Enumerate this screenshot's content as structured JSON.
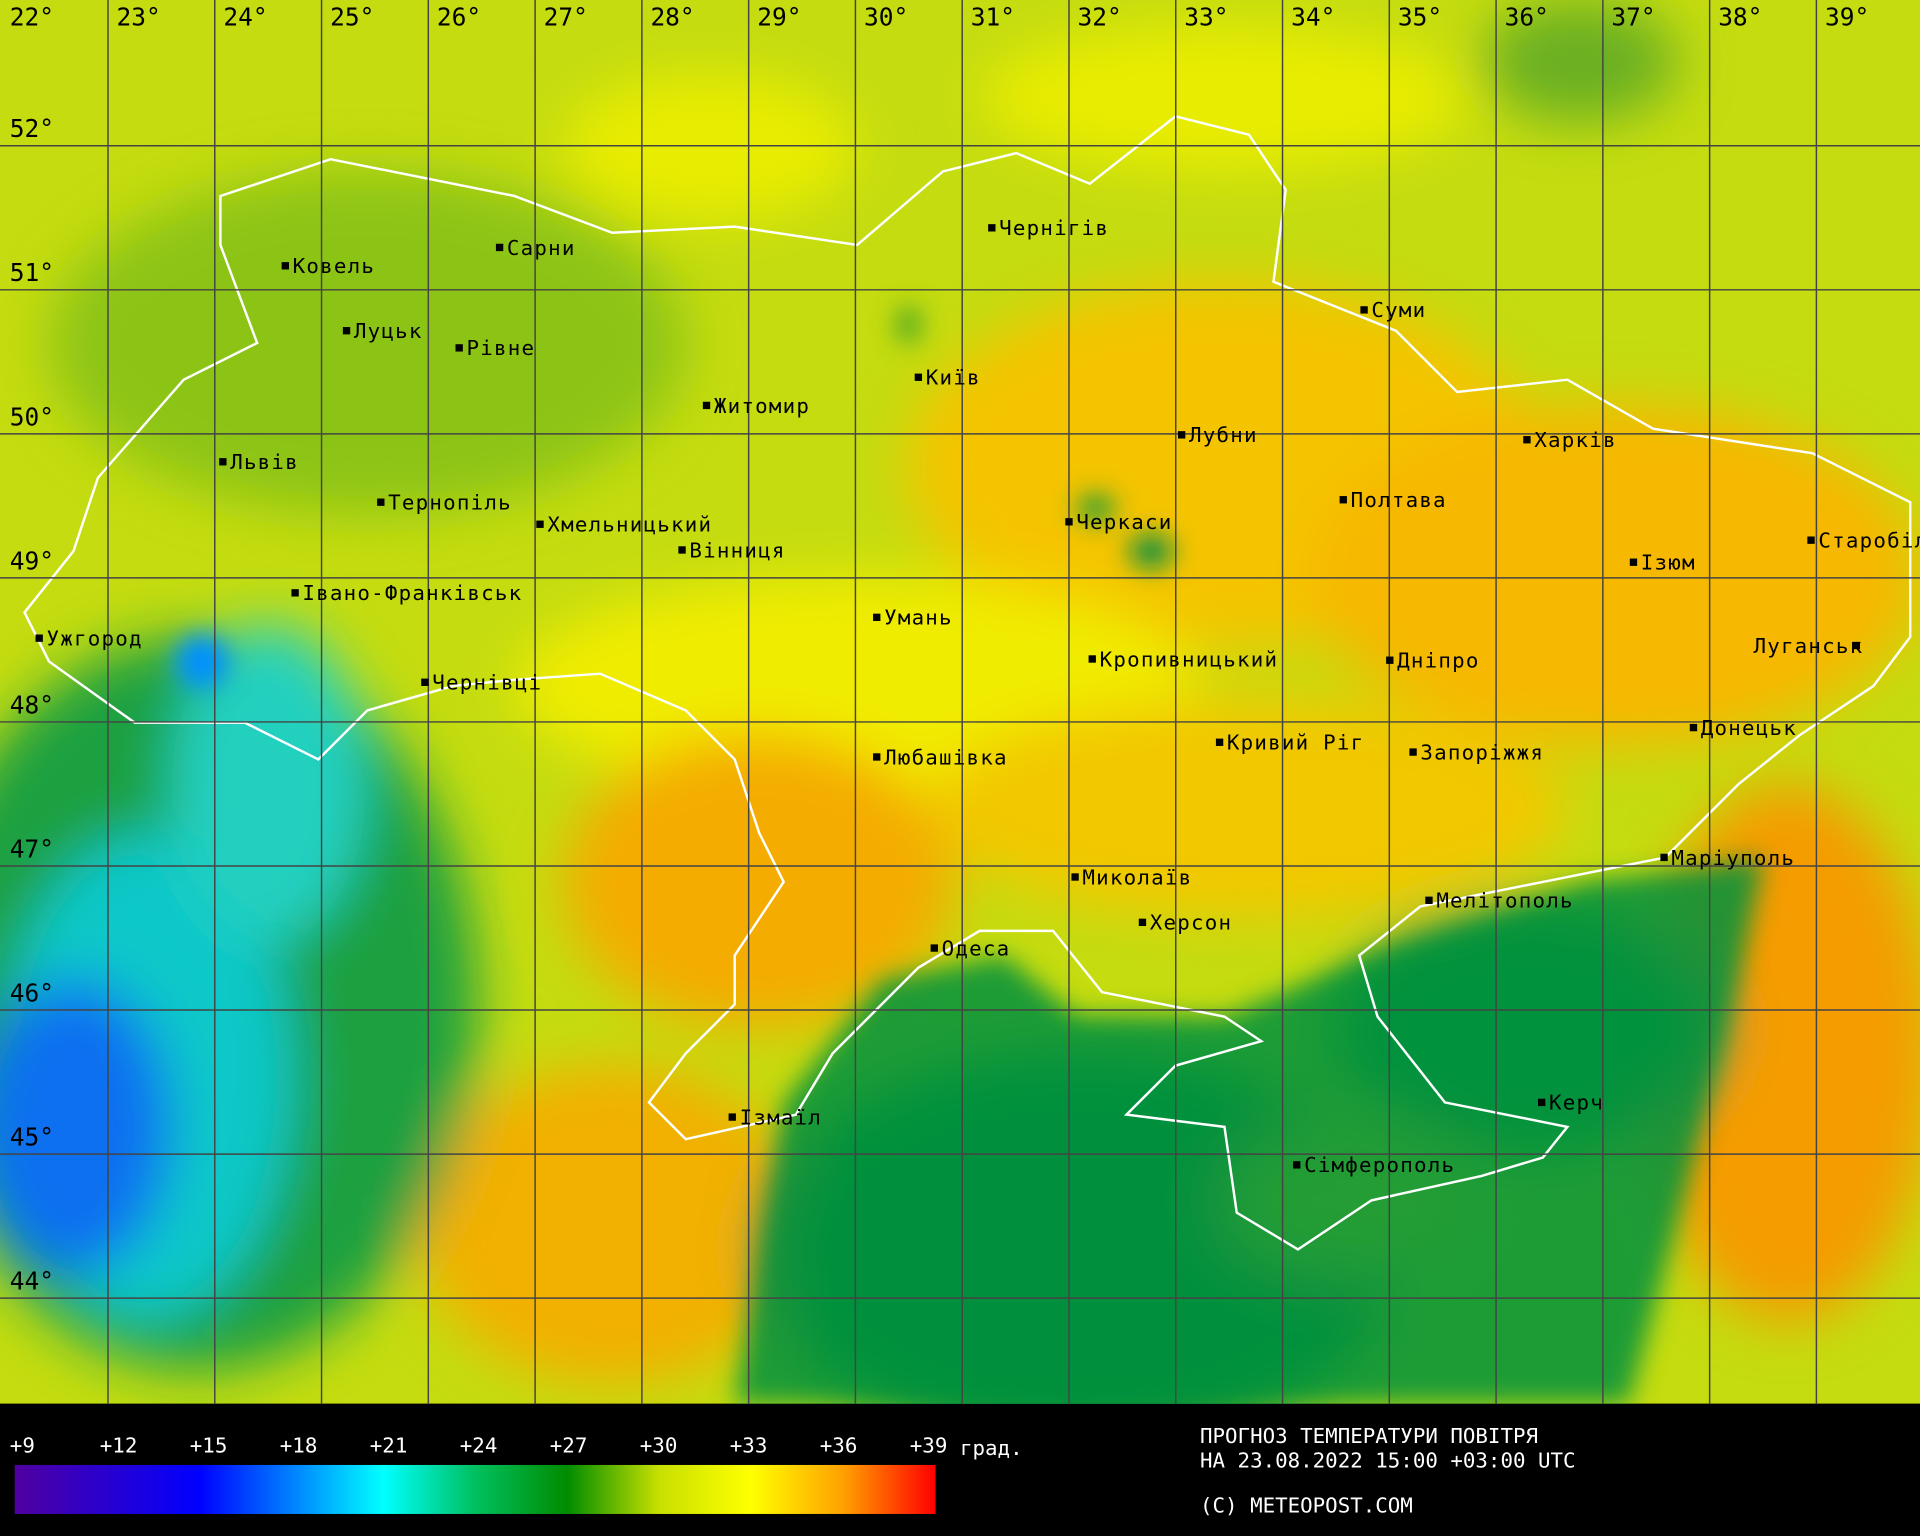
{
  "map": {
    "longitudes": [
      "22°",
      "23°",
      "24°",
      "25°",
      "26°",
      "27°",
      "28°",
      "29°",
      "30°",
      "31°",
      "32°",
      "33°",
      "34°",
      "35°",
      "36°",
      "37°",
      "38°",
      "39°"
    ],
    "latitudes": [
      "52°",
      "51°",
      "50°",
      "49°",
      "48°",
      "47°",
      "46°",
      "45°",
      "44°"
    ],
    "cities": [
      "Ковель",
      "Сарни",
      "Луцьк",
      "Рівне",
      "Житомир",
      "Чернігів",
      "Київ",
      "Суми",
      "Львів",
      "Тернопіль",
      "Хмельницький",
      "Вінниця",
      "Лубни",
      "Харків",
      "Полтава",
      "Черкаси",
      "Ізюм",
      "Старобільськ",
      "Івано-Франківськ",
      "Ужгород",
      "Умань",
      "Кропивницький",
      "Дніпро",
      "Луганськ",
      "Чернівці",
      "Любашівка",
      "Кривий Ріг",
      "Запоріжжя",
      "Донецьк",
      "Маріуполь",
      "Миколаїв",
      "Херсон",
      "Мелітополь",
      "Одеса",
      "Ізмаїл",
      "Керч",
      "Сімферополь"
    ]
  },
  "legend": {
    "ticks": [
      "+9",
      "+12",
      "+15",
      "+18",
      "+21",
      "+24",
      "+27",
      "+30",
      "+33",
      "+36",
      "+39"
    ],
    "unit": "град.",
    "range": [
      9,
      39
    ],
    "colors": [
      "#5000a0",
      "#0000ff",
      "#0080ff",
      "#00ffff",
      "#00c060",
      "#008c00",
      "#c8e000",
      "#ffff00",
      "#ffa000",
      "#ff0000"
    ]
  },
  "caption": {
    "line1": "ПРОГНОЗ ТЕМПЕРАТУРИ ПОВІТРЯ",
    "line2": "НА 23.08.2022 15:00 +03:00 UTC",
    "copyright": "(C) METEOPOST.COM"
  }
}
